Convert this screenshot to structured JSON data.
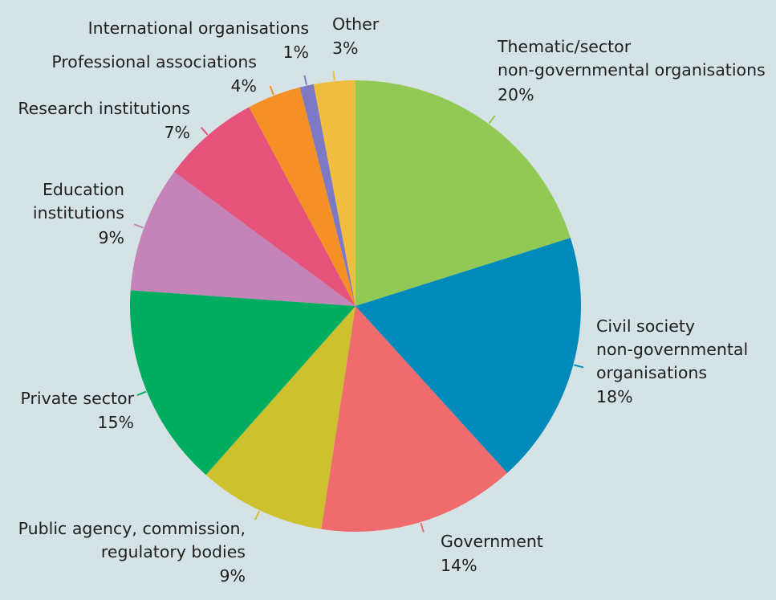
{
  "chart_data": {
    "type": "pie",
    "start_angle_deg": 0,
    "direction": "clockwise",
    "slices": [
      {
        "label_lines": [
          "Thematic/sector",
          "non-governmental organisations"
        ],
        "pct_text": "20%",
        "value": 20.3,
        "color": "#92c955"
      },
      {
        "label_lines": [
          "Civil society",
          "non-governmental",
          "organisations"
        ],
        "pct_text": "18%",
        "value": 18.3,
        "color": "#008aba"
      },
      {
        "label_lines": [
          "Government"
        ],
        "pct_text": "14%",
        "value": 14.3,
        "color": "#f06b6d"
      },
      {
        "label_lines": [
          "Public agency, commission,",
          "regulatory bodies"
        ],
        "pct_text": "9%",
        "value": 9.2,
        "color": "#cdc12e"
      },
      {
        "label_lines": [
          "Private sector"
        ],
        "pct_text": "15%",
        "value": 14.7,
        "color": "#00ad60"
      },
      {
        "label_lines": [
          "Education",
          "institutions"
        ],
        "pct_text": "9%",
        "value": 9.1,
        "color": "#c484b8"
      },
      {
        "label_lines": [
          "Research institutions"
        ],
        "pct_text": "7%",
        "value": 7.1,
        "color": "#e5527a"
      },
      {
        "label_lines": [
          "Professional associations"
        ],
        "pct_text": "4%",
        "value": 3.9,
        "color": "#f49025"
      },
      {
        "label_lines": [
          "International organisations"
        ],
        "pct_text": "1%",
        "value": 1.0,
        "color": "#7e79c4"
      },
      {
        "label_lines": [
          "Other"
        ],
        "pct_text": "3%",
        "value": 3.0,
        "color": "#efbd3f"
      }
    ]
  }
}
